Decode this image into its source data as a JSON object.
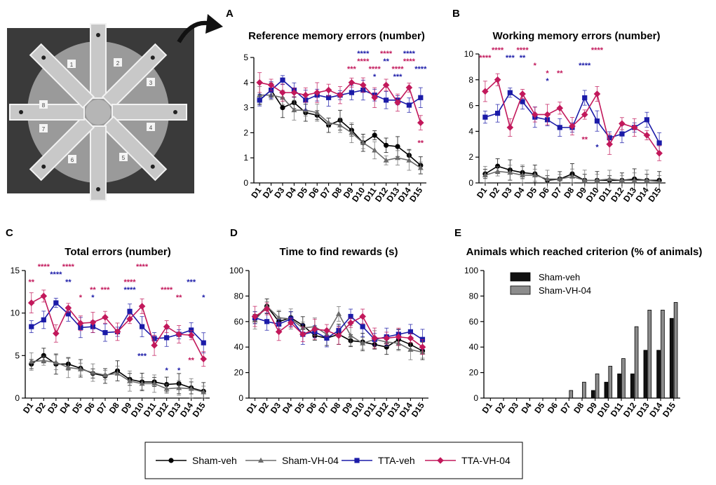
{
  "figure": {
    "photo": {
      "description_icon": "radial-arm-maze-photo",
      "arm_numbers": [
        "1",
        "2",
        "3",
        "4",
        "5",
        "6",
        "7",
        "8"
      ]
    },
    "legend": [
      {
        "name": "Sham-veh",
        "color": "#000000",
        "marker": "circle"
      },
      {
        "name": "Sham-VH-04",
        "color": "#6b6b6b",
        "marker": "triangle"
      },
      {
        "name": "TTA-veh",
        "color": "#1b1ba8",
        "marker": "square"
      },
      {
        "name": "TTA-VH-04",
        "color": "#c2185b",
        "marker": "diamond"
      }
    ],
    "colors": {
      "blue": "#1b1ba8",
      "magenta": "#c2185b",
      "black": "#000000",
      "gray": "#6b6b6b",
      "bar_gray": "#8c8c8c"
    }
  },
  "chart_data": [
    {
      "panel": "A",
      "type": "line",
      "title": "Reference memory errors (number)",
      "categories": [
        "D1",
        "D2",
        "D3",
        "D4",
        "D5",
        "D6",
        "D7",
        "D8",
        "D9",
        "D10",
        "D11",
        "D12",
        "D13",
        "D14",
        "D15"
      ],
      "ylim": [
        0,
        5
      ],
      "yticks": [
        "0",
        "1",
        "2",
        "3",
        "4",
        "5"
      ],
      "series": [
        {
          "name": "Sham-veh",
          "values": [
            3.3,
            3.7,
            3.0,
            3.2,
            2.8,
            2.7,
            2.3,
            2.5,
            2.1,
            1.6,
            1.9,
            1.5,
            1.45,
            1.1,
            0.7
          ]
        },
        {
          "name": "Sham-VH-04",
          "values": [
            3.5,
            3.5,
            3.4,
            2.9,
            2.9,
            2.8,
            2.4,
            2.3,
            2.0,
            1.6,
            1.3,
            0.9,
            1.0,
            0.9,
            0.6
          ]
        },
        {
          "name": "TTA-veh",
          "values": [
            3.3,
            3.7,
            4.1,
            3.7,
            3.3,
            3.5,
            3.4,
            3.5,
            3.6,
            3.7,
            3.5,
            3.3,
            3.3,
            3.1,
            3.4
          ]
        },
        {
          "name": "TTA-VH-04",
          "values": [
            4.0,
            3.9,
            3.6,
            3.6,
            3.5,
            3.6,
            3.7,
            3.5,
            4.0,
            3.9,
            3.4,
            3.9,
            3.2,
            3.8,
            2.4
          ]
        }
      ],
      "stars_top": [
        {
          "day": 9,
          "row": 2,
          "text": "***",
          "color": "magenta"
        },
        {
          "day": 10,
          "row": 0,
          "text": "****",
          "color": "blue"
        },
        {
          "day": 10,
          "row": 1,
          "text": "****",
          "color": "magenta"
        },
        {
          "day": 11,
          "row": 2,
          "text": "****",
          "color": "magenta"
        },
        {
          "day": 11,
          "row": 3,
          "text": "*",
          "color": "blue"
        },
        {
          "day": 12,
          "row": 0,
          "text": "****",
          "color": "magenta"
        },
        {
          "day": 12,
          "row": 1,
          "text": "**",
          "color": "blue"
        },
        {
          "day": 13,
          "row": 2,
          "text": "****",
          "color": "magenta"
        },
        {
          "day": 13,
          "row": 3,
          "text": "***",
          "color": "blue"
        },
        {
          "day": 14,
          "row": 0,
          "text": "****",
          "color": "blue"
        },
        {
          "day": 14,
          "row": 1,
          "text": "****",
          "color": "magenta"
        },
        {
          "day": 15,
          "row": 2,
          "text": "****",
          "color": "blue"
        }
      ],
      "stars_low": [
        {
          "day": 15,
          "value": 1.6,
          "text": "**",
          "color": "magenta"
        }
      ]
    },
    {
      "panel": "B",
      "type": "line",
      "title": "Working memory errors (number)",
      "categories": [
        "D1",
        "D2",
        "D3",
        "D4",
        "D5",
        "D6",
        "D7",
        "D8",
        "D9",
        "D10",
        "D11",
        "D12",
        "D13",
        "D14",
        "D15"
      ],
      "ylim": [
        0,
        10
      ],
      "yticks": [
        "0",
        "2",
        "4",
        "6",
        "8",
        "10"
      ],
      "series": [
        {
          "name": "Sham-veh",
          "values": [
            0.7,
            1.3,
            1.0,
            0.8,
            0.7,
            0.2,
            0.3,
            0.7,
            0.2,
            0.2,
            0.2,
            0.2,
            0.3,
            0.2,
            0.2
          ]
        },
        {
          "name": "Sham-VH-04",
          "values": [
            0.6,
            0.9,
            0.8,
            0.6,
            0.6,
            0.3,
            0.3,
            0.5,
            0.2,
            0.2,
            0.3,
            0.2,
            0.2,
            0.2,
            0.1
          ]
        },
        {
          "name": "TTA-veh",
          "values": [
            5.1,
            5.4,
            7.0,
            6.3,
            5.1,
            4.9,
            4.3,
            4.3,
            6.6,
            4.8,
            3.5,
            3.8,
            4.3,
            4.9,
            3.1
          ]
        },
        {
          "name": "TTA-VH-04",
          "values": [
            7.1,
            8.0,
            4.3,
            6.9,
            5.3,
            5.3,
            5.8,
            4.4,
            5.3,
            6.9,
            3.0,
            4.6,
            4.3,
            3.7,
            2.3
          ]
        }
      ],
      "stars_top": [
        {
          "day": 1,
          "row": 1,
          "text": "****",
          "color": "magenta"
        },
        {
          "day": 2,
          "row": 0,
          "text": "****",
          "color": "magenta"
        },
        {
          "day": 3,
          "row": 1,
          "text": "***",
          "color": "blue"
        },
        {
          "day": 4,
          "row": 0,
          "text": "****",
          "color": "magenta"
        },
        {
          "day": 4,
          "row": 1,
          "text": "**",
          "color": "blue"
        },
        {
          "day": 5,
          "row": 2,
          "text": "*",
          "color": "magenta"
        },
        {
          "day": 6,
          "row": 3,
          "text": "*",
          "color": "magenta"
        },
        {
          "day": 6,
          "row": 4,
          "text": "*",
          "color": "blue"
        },
        {
          "day": 7,
          "row": 3,
          "text": "**",
          "color": "magenta"
        },
        {
          "day": 9,
          "row": 2,
          "text": "****",
          "color": "blue"
        },
        {
          "day": 10,
          "row": 0,
          "text": "****",
          "color": "magenta"
        }
      ],
      "stars_low": [
        {
          "day": 9,
          "value": 3.4,
          "text": "**",
          "color": "magenta"
        },
        {
          "day": 10,
          "value": 2.8,
          "text": "*",
          "color": "blue"
        }
      ]
    },
    {
      "panel": "C",
      "type": "line",
      "title": "Total errors (number)",
      "categories": [
        "D1",
        "D2",
        "D3",
        "D4",
        "D5",
        "D6",
        "D7",
        "D8",
        "D9",
        "D10",
        "D11",
        "D12",
        "D13",
        "D14",
        "D15"
      ],
      "ylim": [
        0,
        15
      ],
      "yticks": [
        "0",
        "5",
        "10",
        "15"
      ],
      "series": [
        {
          "name": "Sham-veh",
          "values": [
            4.0,
            5.0,
            4.0,
            4.0,
            3.5,
            2.9,
            2.6,
            3.2,
            2.2,
            1.9,
            1.9,
            1.6,
            1.7,
            1.2,
            0.8
          ]
        },
        {
          "name": "Sham-VH-04",
          "values": [
            4.3,
            4.4,
            4.2,
            3.6,
            3.4,
            3.0,
            2.7,
            2.9,
            2.0,
            1.7,
            1.7,
            1.1,
            1.2,
            1.1,
            0.7
          ]
        },
        {
          "name": "TTA-veh",
          "values": [
            8.4,
            9.2,
            11.2,
            9.9,
            8.3,
            8.4,
            7.7,
            7.8,
            10.2,
            8.4,
            7.0,
            7.1,
            7.5,
            8.0,
            6.5
          ]
        },
        {
          "name": "TTA-VH-04",
          "values": [
            11.2,
            12.0,
            7.6,
            10.6,
            8.8,
            8.9,
            9.5,
            7.8,
            9.3,
            10.8,
            6.2,
            8.4,
            7.5,
            7.4,
            4.6
          ]
        }
      ],
      "stars_top": [
        {
          "day": 1,
          "row": 2,
          "text": "**",
          "color": "magenta"
        },
        {
          "day": 2,
          "row": 0,
          "text": "****",
          "color": "magenta"
        },
        {
          "day": 3,
          "row": 1,
          "text": "****",
          "color": "blue"
        },
        {
          "day": 4,
          "row": 0,
          "text": "****",
          "color": "magenta"
        },
        {
          "day": 4,
          "row": 2,
          "text": "**",
          "color": "blue"
        },
        {
          "day": 5,
          "row": 4,
          "text": "*",
          "color": "magenta"
        },
        {
          "day": 6,
          "row": 3,
          "text": "**",
          "color": "magenta"
        },
        {
          "day": 6,
          "row": 4,
          "text": "*",
          "color": "blue"
        },
        {
          "day": 7,
          "row": 3,
          "text": "***",
          "color": "magenta"
        },
        {
          "day": 9,
          "row": 2,
          "text": "****",
          "color": "magenta"
        },
        {
          "day": 9,
          "row": 3,
          "text": "****",
          "color": "blue"
        },
        {
          "day": 10,
          "row": 0,
          "text": "****",
          "color": "magenta"
        },
        {
          "day": 12,
          "row": 3,
          "text": "****",
          "color": "magenta"
        },
        {
          "day": 13,
          "row": 4,
          "text": "**",
          "color": "magenta"
        },
        {
          "day": 14,
          "row": 2,
          "text": "***",
          "color": "blue"
        },
        {
          "day": 15,
          "row": 4,
          "text": "*",
          "color": "blue"
        }
      ],
      "stars_low": [
        {
          "day": 10,
          "value": 5.0,
          "text": "***",
          "color": "blue"
        },
        {
          "day": 12,
          "value": 3.3,
          "text": "*",
          "color": "blue"
        },
        {
          "day": 13,
          "value": 3.3,
          "text": "*",
          "color": "blue"
        },
        {
          "day": 14,
          "value": 4.5,
          "text": "**",
          "color": "magenta"
        }
      ]
    },
    {
      "panel": "D",
      "type": "line",
      "title": "Time to find rewards (s)",
      "categories": [
        "D1",
        "D2",
        "D3",
        "D4",
        "D5",
        "D6",
        "D7",
        "D8",
        "D9",
        "D10",
        "D11",
        "D12",
        "D13",
        "D14",
        "D15"
      ],
      "ylim": [
        0,
        100
      ],
      "yticks": [
        "0",
        "20",
        "40",
        "60",
        "80",
        "100"
      ],
      "series": [
        {
          "name": "Sham-veh",
          "values": [
            62,
            72,
            60,
            63,
            57,
            49,
            47,
            50,
            45,
            44,
            42,
            40,
            46,
            42,
            37
          ]
        },
        {
          "name": "Sham-VH-04",
          "values": [
            61,
            72,
            63,
            62,
            55,
            56,
            50,
            66,
            49,
            43,
            46,
            44,
            43,
            38,
            36
          ]
        },
        {
          "name": "TTA-veh",
          "values": [
            63,
            60,
            58,
            62,
            50,
            52,
            47,
            53,
            64,
            56,
            46,
            48,
            50,
            52,
            46
          ]
        },
        {
          "name": "TTA-VH-04",
          "values": [
            64,
            70,
            52,
            59,
            50,
            54,
            53,
            49,
            59,
            64,
            47,
            47,
            48,
            47,
            40
          ]
        }
      ],
      "stars_top": [],
      "stars_low": []
    },
    {
      "panel": "E",
      "type": "bar",
      "title": "Animals which reached criterion (% of animals)",
      "categories": [
        "D1",
        "D2",
        "D3",
        "D4",
        "D5",
        "D6",
        "D7",
        "D8",
        "D9",
        "D10",
        "D11",
        "D12",
        "D13",
        "D14",
        "D15"
      ],
      "ylim": [
        0,
        100
      ],
      "yticks": [
        "0",
        "20",
        "40",
        "60",
        "80",
        "100"
      ],
      "series": [
        {
          "name": "Sham-veh",
          "values": [
            0,
            0,
            0,
            0,
            0,
            0,
            0,
            0,
            6,
            12.5,
            19,
            19,
            37.5,
            37.5,
            62.5
          ]
        },
        {
          "name": "Sham-VH-04",
          "values": [
            0,
            0,
            0,
            0,
            0,
            0,
            6,
            12.5,
            19,
            25,
            31,
            56,
            69,
            69,
            75
          ]
        }
      ],
      "legend": [
        "Sham-veh",
        "Sham-VH-04"
      ]
    }
  ]
}
